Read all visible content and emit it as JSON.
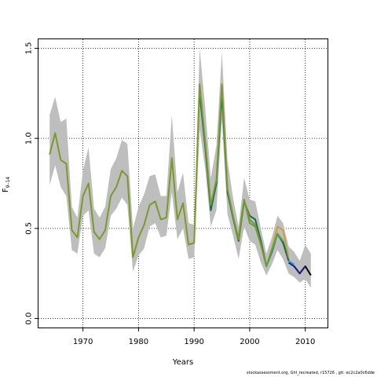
{
  "chart_data": {
    "type": "line",
    "xlabel": "Years",
    "ylabel_main": "F",
    "ylabel_sub": "9–14",
    "xlim": [
      1962,
      2014
    ],
    "ylim": [
      -0.05,
      1.55
    ],
    "x_ticks": [
      1970,
      1980,
      1990,
      2000,
      2010
    ],
    "y_ticks": [
      0.0,
      0.5,
      1.0,
      1.5
    ],
    "x_tick_labels": [
      "1970",
      "1980",
      "1990",
      "2000",
      "2010"
    ],
    "y_tick_labels": [
      "0.0",
      "0.5",
      "1.0",
      "1.5"
    ],
    "grid": true,
    "band_color": "#bebebe",
    "band": {
      "x": [
        1964,
        1965,
        1966,
        1967,
        1968,
        1969,
        1970,
        1971,
        1972,
        1973,
        1974,
        1975,
        1976,
        1977,
        1978,
        1979,
        1980,
        1981,
        1982,
        1983,
        1984,
        1985,
        1986,
        1987,
        1988,
        1989,
        1990,
        1991,
        1992,
        1993,
        1994,
        1995,
        1996,
        1997,
        1998,
        1999,
        2000,
        2001,
        2002,
        2003,
        2004,
        2005,
        2006,
        2007,
        2008,
        2009,
        2010,
        2011
      ],
      "lower": [
        0.74,
        0.85,
        0.73,
        0.68,
        0.38,
        0.36,
        0.57,
        0.6,
        0.36,
        0.34,
        0.39,
        0.57,
        0.61,
        0.67,
        0.63,
        0.26,
        0.35,
        0.39,
        0.51,
        0.53,
        0.45,
        0.46,
        0.7,
        0.44,
        0.5,
        0.33,
        0.34,
        1.05,
        0.83,
        0.51,
        0.6,
        1.1,
        0.58,
        0.46,
        0.33,
        0.51,
        0.43,
        0.41,
        0.31,
        0.24,
        0.3,
        0.38,
        0.33,
        0.25,
        0.23,
        0.2,
        0.22,
        0.17
      ],
      "upper": [
        1.13,
        1.23,
        1.09,
        1.11,
        0.62,
        0.56,
        0.82,
        0.95,
        0.61,
        0.56,
        0.62,
        0.83,
        0.89,
        0.99,
        0.97,
        0.5,
        0.62,
        0.69,
        0.79,
        0.8,
        0.68,
        0.68,
        1.13,
        0.7,
        0.81,
        0.53,
        0.52,
        1.5,
        1.17,
        0.78,
        0.96,
        1.48,
        0.88,
        0.67,
        0.51,
        0.78,
        0.66,
        0.65,
        0.5,
        0.36,
        0.45,
        0.57,
        0.53,
        0.4,
        0.37,
        0.32,
        0.41,
        0.36
      ]
    },
    "series": [
      {
        "color": "#000000",
        "x": [
          2008,
          2009,
          2010,
          2011
        ],
        "values": [
          0.29,
          0.25,
          0.29,
          0.24
        ]
      },
      {
        "color": "#1c1c8c",
        "x": [
          2007,
          2008,
          2009,
          2010
        ],
        "values": [
          0.31,
          0.29,
          0.25,
          0.29
        ]
      },
      {
        "color": "#30a0c8",
        "x": [
          2006,
          2007,
          2008
        ],
        "values": [
          0.43,
          0.32,
          0.3
        ]
      },
      {
        "color": "#1a6b4a",
        "x": [
          1991,
          1992,
          1993,
          1994,
          1995,
          1996,
          1997,
          1998,
          1999,
          2000,
          2001,
          2002,
          2003,
          2004,
          2005,
          2006,
          2007
        ],
        "values": [
          1.25,
          0.95,
          0.6,
          0.75,
          1.25,
          0.7,
          0.56,
          0.43,
          0.65,
          0.57,
          0.55,
          0.43,
          0.29,
          0.37,
          0.47,
          0.42,
          0.32
        ]
      },
      {
        "color": "#c8a040",
        "x": [
          2003,
          2004,
          2005,
          2006,
          2007
        ],
        "values": [
          0.29,
          0.39,
          0.51,
          0.49,
          0.34
        ]
      },
      {
        "color": "#5aa04a",
        "x": [
          1998,
          1999,
          2000,
          2001,
          2002,
          2003,
          2004,
          2005,
          2006
        ],
        "values": [
          0.45,
          0.66,
          0.53,
          0.51,
          0.41,
          0.29,
          0.38,
          0.47,
          0.43
        ]
      },
      {
        "color": "#7a9a2a",
        "x": [
          1964,
          1965,
          1966,
          1967,
          1968,
          1969,
          1970,
          1971,
          1972,
          1973,
          1974,
          1975,
          1976,
          1977,
          1978,
          1979,
          1980,
          1981,
          1982,
          1983,
          1984,
          1985,
          1986,
          1987,
          1988,
          1989,
          1990,
          1991,
          1992,
          1993,
          1994,
          1995,
          1996,
          1997,
          1998,
          1999,
          2000,
          2001,
          2002,
          2003
        ],
        "values": [
          0.91,
          1.03,
          0.88,
          0.86,
          0.49,
          0.45,
          0.68,
          0.75,
          0.48,
          0.44,
          0.49,
          0.68,
          0.73,
          0.82,
          0.79,
          0.34,
          0.45,
          0.52,
          0.63,
          0.65,
          0.55,
          0.56,
          0.89,
          0.55,
          0.64,
          0.41,
          0.42,
          1.3,
          0.98,
          0.63,
          0.77,
          1.3,
          0.72,
          0.57,
          0.44,
          0.66,
          0.55,
          0.52,
          0.41,
          0.29
        ]
      }
    ]
  },
  "footer": {
    "text": "stockassessment.org, GhI_recreated, r15726 ,  git: ec2c2a0c6dde"
  }
}
